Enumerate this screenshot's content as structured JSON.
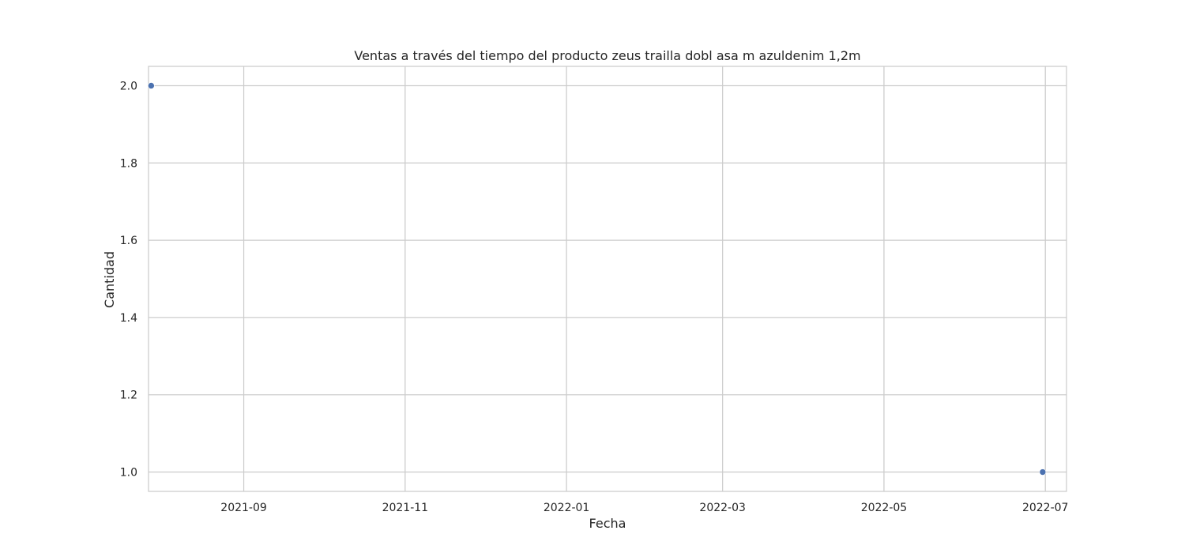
{
  "chart_data": {
    "type": "scatter",
    "title": "Ventas a través del tiempo del producto zeus trailla dobl asa  m  azuldenim 1,2m",
    "xlabel": "Fecha",
    "ylabel": "Cantidad",
    "x_axis_type": "date",
    "xlim": [
      "2021-07-27",
      "2022-07-09"
    ],
    "ylim": [
      0.95,
      2.05
    ],
    "x_ticks": [
      "2021-09-01",
      "2021-11-01",
      "2022-01-01",
      "2022-03-01",
      "2022-05-01",
      "2022-07-01"
    ],
    "x_tick_labels": [
      "2021-09",
      "2021-11",
      "2022-01",
      "2022-03",
      "2022-05",
      "2022-07"
    ],
    "y_ticks": [
      1.0,
      1.2,
      1.4,
      1.6,
      1.8,
      2.0
    ],
    "y_tick_labels": [
      "1.0",
      "1.2",
      "1.4",
      "1.6",
      "1.8",
      "2.0"
    ],
    "grid": true,
    "legend": "none",
    "series": [
      {
        "color": "#4c72b0",
        "points": [
          {
            "x": "2021-07-28",
            "y": 2
          },
          {
            "x": "2022-06-30",
            "y": 1
          }
        ]
      }
    ],
    "colors": {
      "grid": "#cccccc",
      "spine": "#cccccc",
      "text": "#262626",
      "background": "#ffffff"
    }
  }
}
